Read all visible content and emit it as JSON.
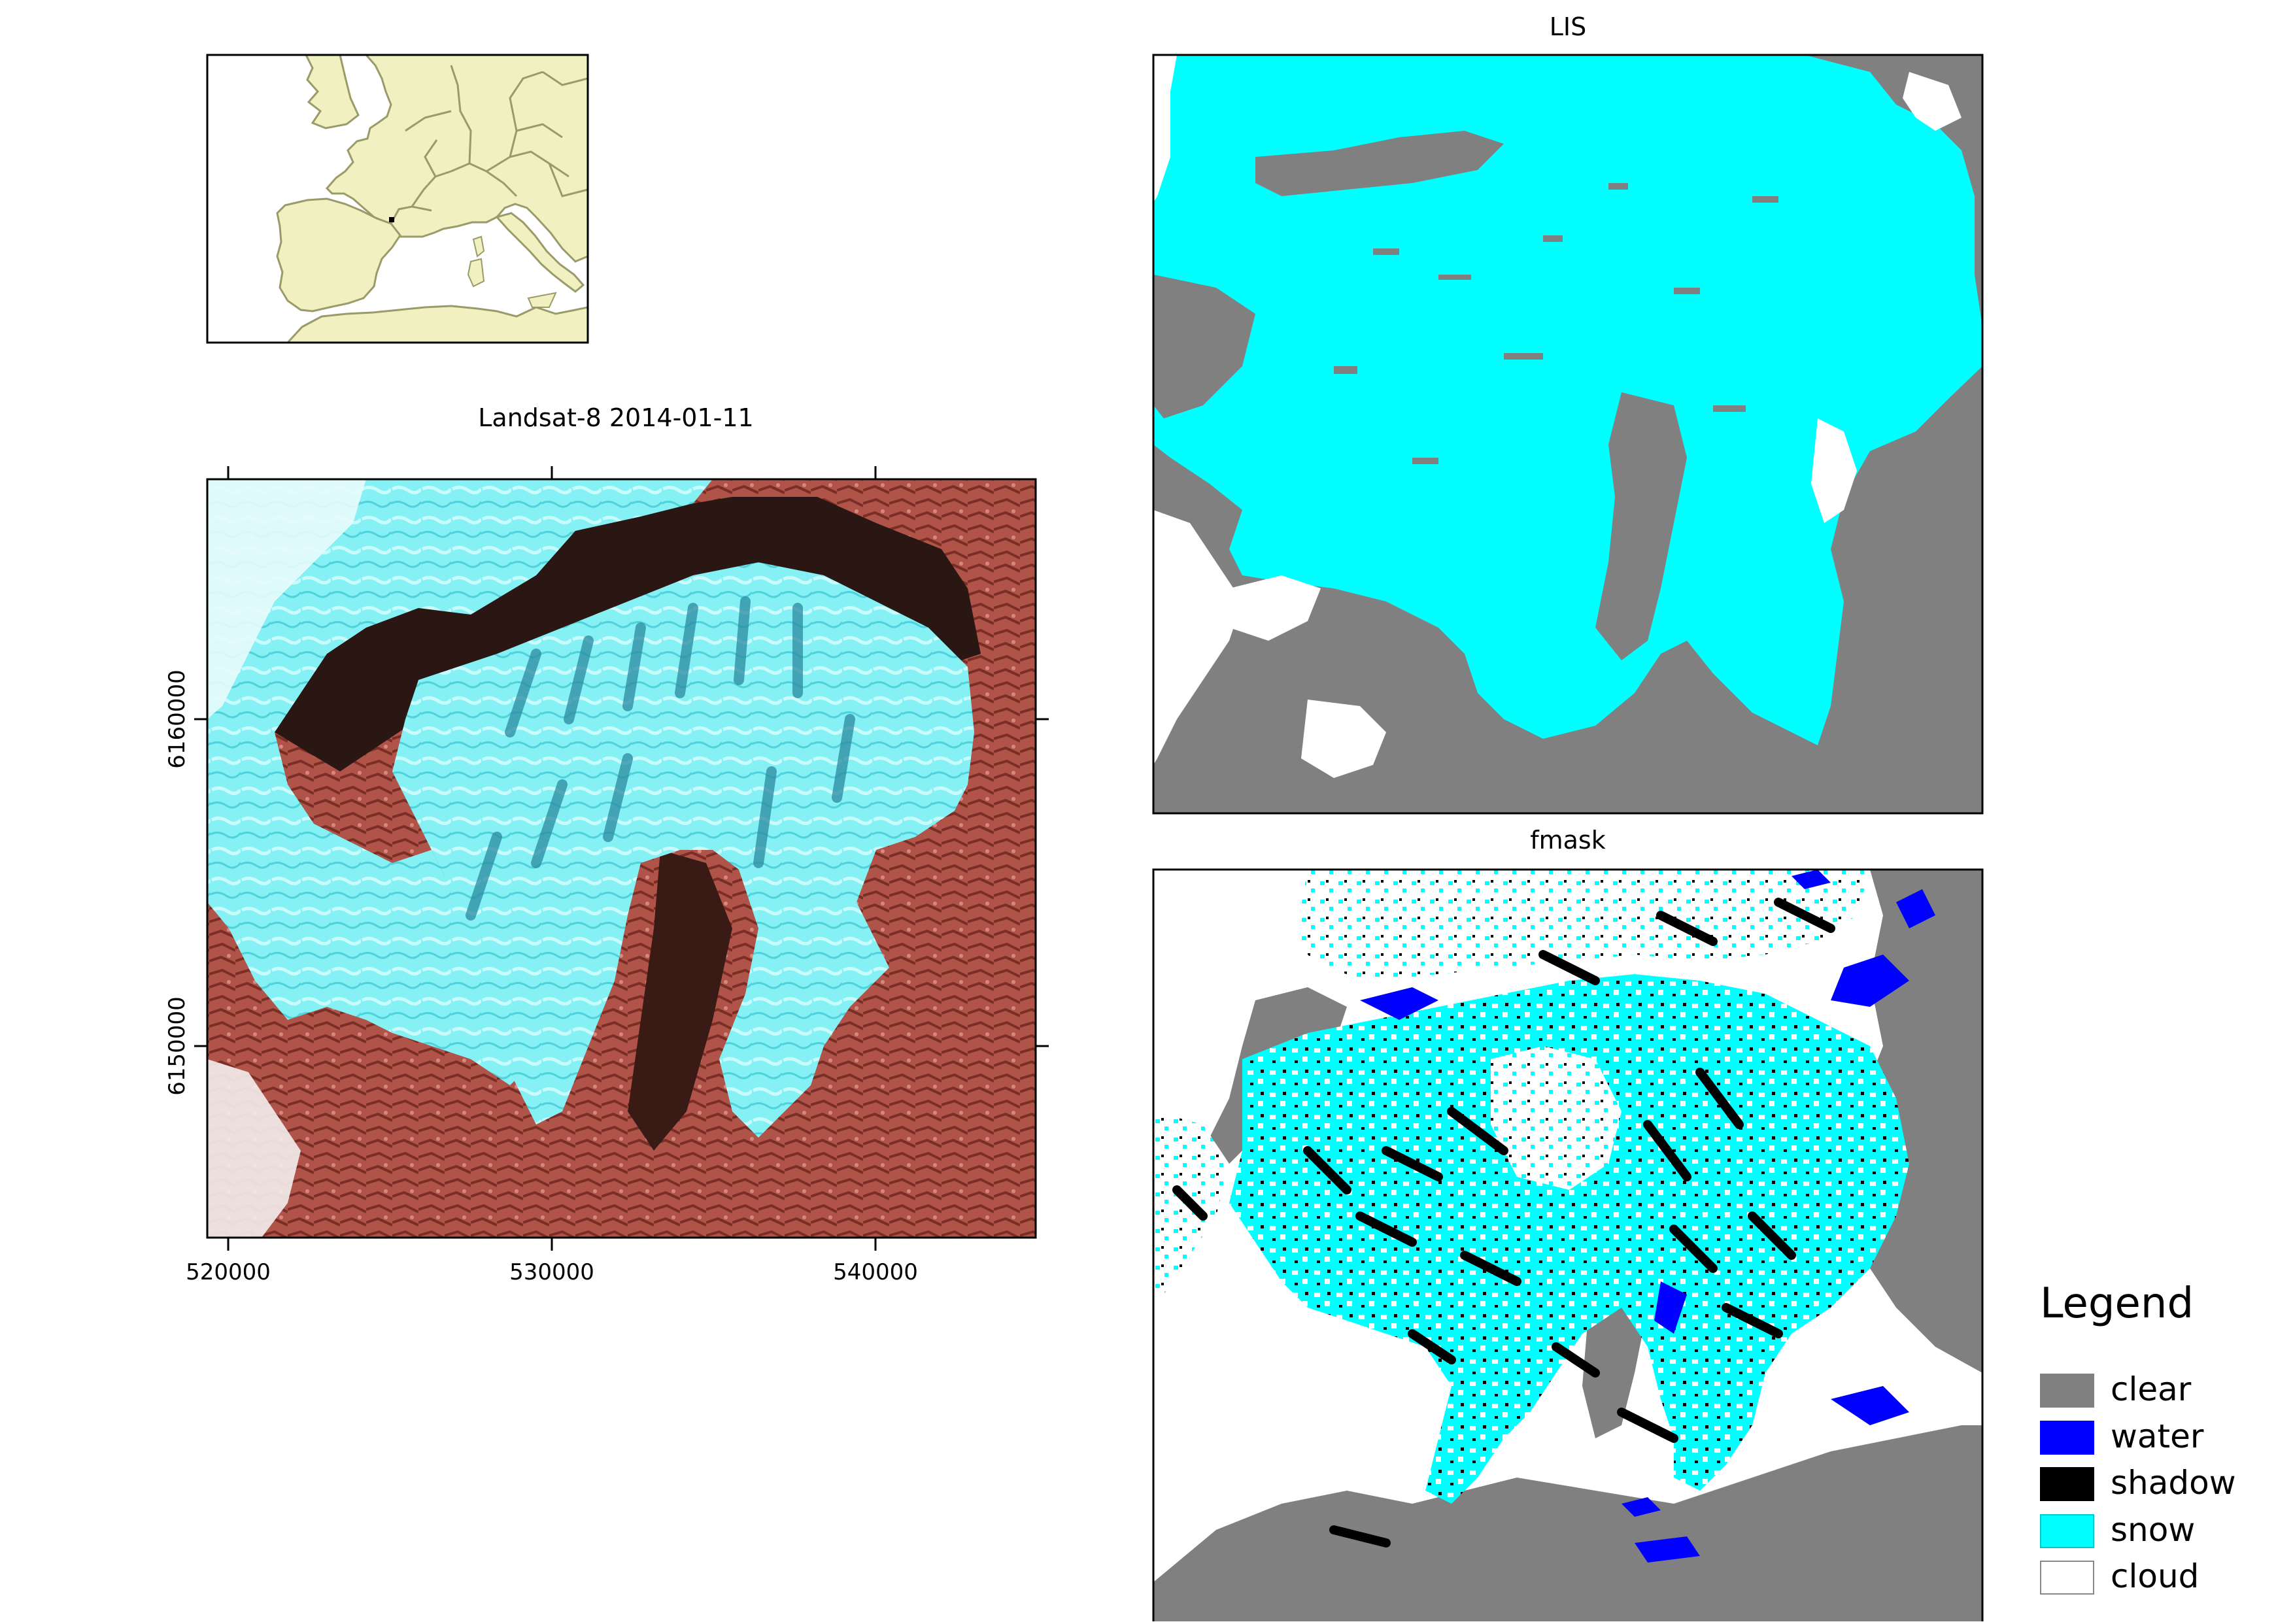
{
  "inset": {
    "locator": "black square"
  },
  "landsat_panel": {
    "title": "Landsat-8 2014-01-11",
    "x_ticks": [
      "520000",
      "530000",
      "540000"
    ],
    "y_ticks": [
      "6160000",
      "6150000"
    ]
  },
  "lis_panel": {
    "title": "LIS"
  },
  "fmask_panel": {
    "title": "fmask"
  },
  "legend": {
    "title": "Legend",
    "items": [
      {
        "label": "clear",
        "color": "#808080"
      },
      {
        "label": "water",
        "color": "#0000ff"
      },
      {
        "label": "shadow",
        "color": "#000000"
      },
      {
        "label": "snow",
        "color": "#00ffff"
      },
      {
        "label": "cloud",
        "color": "#ffffff"
      }
    ]
  },
  "colors": {
    "clear": "#808080",
    "water": "#0000ff",
    "shadow": "#000000",
    "snow": "#00ffff",
    "cloud": "#ffffff",
    "land": "#f0f0c0",
    "country_border": "#9a9a6a",
    "terrain_red": "#b0544a",
    "terrain_dark": "#2a1612"
  }
}
